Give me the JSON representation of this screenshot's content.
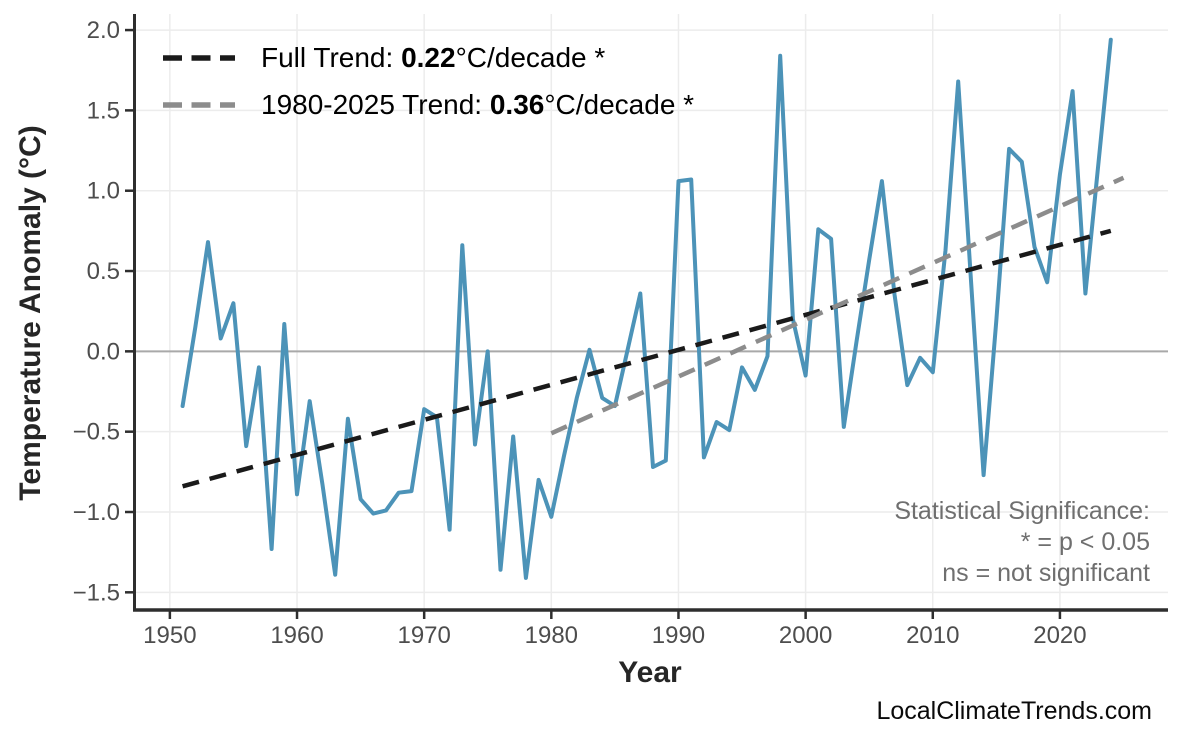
{
  "colors": {
    "series": "#4C93B8",
    "trend_full": "#1a1a1a",
    "trend_recent": "#8c8c8c",
    "grid": "#ececec",
    "zero_line": "#a9a9a9",
    "axis_line": "#2e2e2e",
    "tick_text": "#4d4d4d",
    "annotation_text": "#6f6f6f",
    "background": "#ffffff"
  },
  "legend": {
    "rows": [
      {
        "prefix": "Full Trend: ",
        "value": "0.22",
        "suffix": "°C/decade *"
      },
      {
        "prefix": "1980-2025 Trend: ",
        "value": "0.36",
        "suffix": "°C/decade *"
      }
    ]
  },
  "annotation": {
    "line1": "Statistical Significance:",
    "line2": "* = p < 0.05",
    "line3": "ns = not significant"
  },
  "watermark": "LocalClimateTrends.com",
  "chart_data": {
    "type": "line",
    "title": "",
    "xlabel": "Year",
    "ylabel": "Temperature Anomaly (°C)",
    "grid": true,
    "legend_position": "top-left inside",
    "xlim": [
      1947.1,
      2028.5
    ],
    "ylim": [
      -1.61,
      2.1
    ],
    "x_ticks": [
      1950,
      1960,
      1970,
      1980,
      1990,
      2000,
      2010,
      2020
    ],
    "y_ticks": [
      2.0,
      1.5,
      1.0,
      0.5,
      0.0,
      -0.5,
      -1.0,
      -1.5
    ],
    "y_tick_labels": [
      "2.0",
      "1.5",
      "1.0",
      "0.5",
      "0.0",
      "−0.5",
      "−1.0",
      "−1.5"
    ],
    "years": [
      1951,
      1952,
      1953,
      1954,
      1955,
      1956,
      1957,
      1958,
      1959,
      1960,
      1961,
      1962,
      1963,
      1964,
      1965,
      1966,
      1967,
      1968,
      1969,
      1970,
      1971,
      1972,
      1973,
      1974,
      1975,
      1976,
      1977,
      1978,
      1979,
      1980,
      1981,
      1982,
      1983,
      1984,
      1985,
      1986,
      1987,
      1988,
      1989,
      1990,
      1991,
      1992,
      1993,
      1994,
      1995,
      1996,
      1997,
      1998,
      1999,
      2000,
      2001,
      2002,
      2003,
      2004,
      2005,
      2006,
      2007,
      2008,
      2009,
      2010,
      2011,
      2012,
      2013,
      2014,
      2015,
      2016,
      2017,
      2018,
      2019,
      2020,
      2021,
      2022,
      2023,
      2024
    ],
    "values": [
      -0.34,
      0.15,
      0.68,
      0.08,
      0.3,
      -0.59,
      -0.1,
      -1.23,
      0.17,
      -0.89,
      -0.31,
      -0.83,
      -1.39,
      -0.42,
      -0.92,
      -1.01,
      -0.99,
      -0.88,
      -0.87,
      -0.36,
      -0.41,
      -1.11,
      0.66,
      -0.58,
      0.0,
      -1.36,
      -0.53,
      -1.41,
      -0.8,
      -1.03,
      -0.65,
      -0.29,
      0.01,
      -0.29,
      -0.34,
      0.01,
      0.36,
      -0.72,
      -0.68,
      1.06,
      1.07,
      -0.66,
      -0.44,
      -0.49,
      -0.1,
      -0.24,
      -0.03,
      1.84,
      0.2,
      -0.15,
      0.76,
      0.7,
      -0.47,
      0.06,
      0.57,
      1.06,
      0.35,
      -0.21,
      -0.04,
      -0.13,
      0.63,
      1.68,
      0.45,
      -0.77,
      0.19,
      1.26,
      1.18,
      0.65,
      0.43,
      1.1,
      1.62,
      0.36,
      1.15,
      1.94
    ],
    "trend_lines": [
      {
        "name": "full-trend",
        "label": "Full Trend: 0.22°C/decade *",
        "x": [
          1951,
          2024
        ],
        "y": [
          -0.84,
          0.75
        ],
        "color": "#1a1a1a",
        "dash": "17 11"
      },
      {
        "name": "recent-trend",
        "label": "1980-2025 Trend: 0.36°C/decade *",
        "x": [
          1980,
          2025
        ],
        "y": [
          -0.51,
          1.08
        ],
        "color": "#8c8c8c",
        "dash": "17 11"
      }
    ]
  }
}
